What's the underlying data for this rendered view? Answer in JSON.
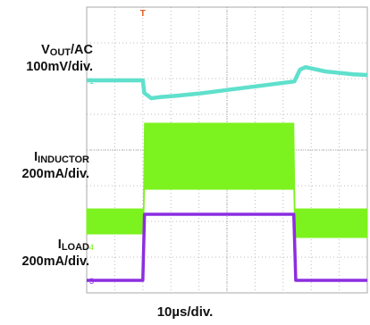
{
  "chart_data": {
    "type": "line",
    "title": "",
    "time_scale_label": "10µs/div.",
    "grid": true,
    "x_divisions": 10,
    "y_divisions": 8,
    "channel_markers": [
      "1",
      "4",
      "3"
    ],
    "trigger_marker": "T",
    "x_units": "div",
    "xlim": [
      0,
      10
    ],
    "series": [
      {
        "name": "VOUT",
        "label_main": "V",
        "label_sub": "OUT",
        "label_suffix": "/AC",
        "scale": "100mV/div.",
        "color": "#5fe0cc",
        "x": [
          0,
          2.0,
          2.05,
          2.3,
          2.6,
          3.2,
          4.0,
          5.0,
          6.0,
          7.0,
          7.4,
          7.6,
          7.8,
          8.5,
          9.5,
          10
        ],
        "y": [
          5.95,
          5.95,
          5.6,
          5.45,
          5.48,
          5.52,
          5.58,
          5.68,
          5.78,
          5.88,
          5.92,
          6.25,
          6.32,
          6.2,
          6.12,
          6.1
        ]
      },
      {
        "name": "IINDUCTOR",
        "label_main": "I",
        "label_sub": "INDUCTOR",
        "label_suffix": "",
        "scale": "200mA/div.",
        "color": "#7cf21e",
        "band": true,
        "x": [
          0,
          2.02,
          2.06,
          7.38,
          7.42,
          10
        ],
        "low": [
          1.65,
          1.65,
          2.9,
          2.9,
          1.55,
          1.55
        ],
        "high": [
          2.35,
          2.35,
          4.75,
          4.75,
          2.35,
          2.35
        ]
      },
      {
        "name": "ILOAD",
        "label_main": "I",
        "label_sub": "LOAD",
        "label_suffix": "",
        "scale": "200mA/div.",
        "color": "#8c2ee0",
        "x": [
          0,
          2.0,
          2.06,
          7.38,
          7.45,
          10
        ],
        "y": [
          0.35,
          0.35,
          2.2,
          2.2,
          0.35,
          0.35
        ]
      }
    ]
  }
}
